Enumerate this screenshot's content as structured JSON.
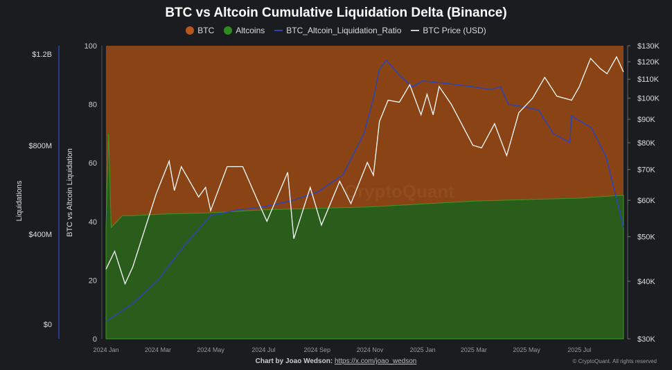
{
  "chart_data": {
    "type": "area",
    "title": "BTC vs Altcoin Cumulative Liquidation Delta (Binance)",
    "legend": [
      {
        "name": "BTC",
        "color": "#b5561a",
        "kind": "dot"
      },
      {
        "name": "Altcoins",
        "color": "#2e8b1e",
        "kind": "dot"
      },
      {
        "name": "BTC_Altcoin_Liquidation_Ratio",
        "color": "#2b45b8",
        "kind": "line"
      },
      {
        "name": "BTC Price (USD)",
        "color": "#ffffff",
        "kind": "line"
      }
    ],
    "legend_placement": "top-center",
    "x_range": [
      "2024-01-01",
      "2025-08-21"
    ],
    "x_ticks": [
      {
        "date": "2024-01-01",
        "label": "2024 Jan"
      },
      {
        "date": "2024-03-01",
        "label": "2024 Mar"
      },
      {
        "date": "2024-05-01",
        "label": "2024 May"
      },
      {
        "date": "2024-07-01",
        "label": "2024 Jul"
      },
      {
        "date": "2024-09-01",
        "label": "2024 Sep"
      },
      {
        "date": "2024-11-01",
        "label": "2024 Nov"
      },
      {
        "date": "2025-01-01",
        "label": "2025 Jan"
      },
      {
        "date": "2025-03-01",
        "label": "2025 Mar"
      },
      {
        "date": "2025-05-01",
        "label": "2025 May"
      },
      {
        "date": "2025-07-01",
        "label": "2025 Jul"
      }
    ],
    "y_liquidations": {
      "label": "Liquidations",
      "ticks": [
        "$0",
        "$400M",
        "$800M",
        "$1.2B"
      ],
      "range": [
        0,
        1200000000
      ]
    },
    "y_ratio": {
      "label": "BTC vs Altcoin Liquidation",
      "range": [
        0,
        100
      ],
      "ticks": [
        "0",
        "20",
        "40",
        "60",
        "80",
        "100"
      ]
    },
    "y_price": {
      "scale": "log",
      "range": [
        30000,
        130000
      ],
      "ticks": [
        [
          "$30K",
          30000
        ],
        [
          "$40K",
          40000
        ],
        [
          "$50K",
          50000
        ],
        [
          "$60K",
          60000
        ],
        [
          "$70K",
          70000
        ],
        [
          "$80K",
          80000
        ],
        [
          "$90K",
          90000
        ],
        [
          "$100K",
          100000
        ],
        [
          "$110K",
          110000
        ],
        [
          "$120K",
          120000
        ],
        [
          "$130K",
          130000
        ]
      ]
    },
    "series": [
      {
        "name": "Altcoins",
        "axis": "ratio",
        "values": [
          [
            "2024-01-01",
            38
          ],
          [
            "2024-01-04",
            70
          ],
          [
            "2024-01-07",
            38
          ],
          [
            "2024-01-20",
            42
          ],
          [
            "2024-02-01",
            42
          ],
          [
            "2024-03-01",
            42.5
          ],
          [
            "2024-05-01",
            43
          ],
          [
            "2024-07-01",
            44
          ],
          [
            "2024-09-01",
            44.5
          ],
          [
            "2024-11-01",
            45
          ],
          [
            "2025-01-01",
            46
          ],
          [
            "2025-03-01",
            47
          ],
          [
            "2025-05-01",
            47.5
          ],
          [
            "2025-07-01",
            48
          ],
          [
            "2025-08-21",
            49
          ]
        ]
      },
      {
        "name": "BTC_Altcoin_Liquidation_Ratio",
        "axis": "ratio",
        "values": [
          [
            "2024-01-01",
            6
          ],
          [
            "2024-02-01",
            12
          ],
          [
            "2024-03-01",
            20
          ],
          [
            "2024-04-01",
            32
          ],
          [
            "2024-05-01",
            42
          ],
          [
            "2024-06-01",
            44
          ],
          [
            "2024-07-01",
            45
          ],
          [
            "2024-08-01",
            47
          ],
          [
            "2024-09-01",
            50
          ],
          [
            "2024-10-01",
            56
          ],
          [
            "2024-10-25",
            70
          ],
          [
            "2024-11-05",
            82
          ],
          [
            "2024-11-12",
            92
          ],
          [
            "2024-11-20",
            95
          ],
          [
            "2024-12-05",
            90
          ],
          [
            "2024-12-20",
            86
          ],
          [
            "2025-01-01",
            88
          ],
          [
            "2025-02-01",
            87
          ],
          [
            "2025-03-01",
            86
          ],
          [
            "2025-03-20",
            85
          ],
          [
            "2025-04-01",
            86
          ],
          [
            "2025-04-10",
            80
          ],
          [
            "2025-05-01",
            79
          ],
          [
            "2025-05-15",
            78
          ],
          [
            "2025-06-01",
            70
          ],
          [
            "2025-06-20",
            67
          ],
          [
            "2025-06-22",
            76
          ],
          [
            "2025-07-15",
            72
          ],
          [
            "2025-08-01",
            62
          ],
          [
            "2025-08-21",
            38
          ]
        ]
      },
      {
        "name": "BTC Price (USD)",
        "axis": "price",
        "values": [
          [
            "2024-01-01",
            42500
          ],
          [
            "2024-01-11",
            46500
          ],
          [
            "2024-01-23",
            39500
          ],
          [
            "2024-02-01",
            43000
          ],
          [
            "2024-02-15",
            52000
          ],
          [
            "2024-02-28",
            62000
          ],
          [
            "2024-03-14",
            73000
          ],
          [
            "2024-03-20",
            63000
          ],
          [
            "2024-03-28",
            71000
          ],
          [
            "2024-04-17",
            61000
          ],
          [
            "2024-04-25",
            64000
          ],
          [
            "2024-05-01",
            57000
          ],
          [
            "2024-05-20",
            71000
          ],
          [
            "2024-06-07",
            71000
          ],
          [
            "2024-06-24",
            60000
          ],
          [
            "2024-07-05",
            54000
          ],
          [
            "2024-07-29",
            69000
          ],
          [
            "2024-08-05",
            49500
          ],
          [
            "2024-08-24",
            64000
          ],
          [
            "2024-09-06",
            53000
          ],
          [
            "2024-09-27",
            66000
          ],
          [
            "2024-10-10",
            59000
          ],
          [
            "2024-10-29",
            72500
          ],
          [
            "2024-11-05",
            68000
          ],
          [
            "2024-11-12",
            89000
          ],
          [
            "2024-11-22",
            99000
          ],
          [
            "2024-12-05",
            98000
          ],
          [
            "2024-12-17",
            107000
          ],
          [
            "2024-12-30",
            92000
          ],
          [
            "2025-01-06",
            102000
          ],
          [
            "2025-01-13",
            92000
          ],
          [
            "2025-01-20",
            106000
          ],
          [
            "2025-02-03",
            97000
          ],
          [
            "2025-02-28",
            79000
          ],
          [
            "2025-03-10",
            78000
          ],
          [
            "2025-03-25",
            88000
          ],
          [
            "2025-04-08",
            75000
          ],
          [
            "2025-04-22",
            93000
          ],
          [
            "2025-05-08",
            100000
          ],
          [
            "2025-05-22",
            111000
          ],
          [
            "2025-06-05",
            101000
          ],
          [
            "2025-06-22",
            99000
          ],
          [
            "2025-07-01",
            106000
          ],
          [
            "2025-07-14",
            122000
          ],
          [
            "2025-07-25",
            116000
          ],
          [
            "2025-08-02",
            113000
          ],
          [
            "2025-08-13",
            123000
          ],
          [
            "2025-08-21",
            114000
          ]
        ]
      }
    ],
    "background_series": {
      "name": "BTC",
      "color": "#b5561a",
      "fills": "remainder to 100"
    },
    "grid": false,
    "watermark": "CryptoQuant"
  },
  "footer": {
    "credit": "Chart by Joao Wedson:",
    "link": "https://x.com/joao_wedson",
    "copyright": "© CryptoQuant. All rights reserved"
  }
}
